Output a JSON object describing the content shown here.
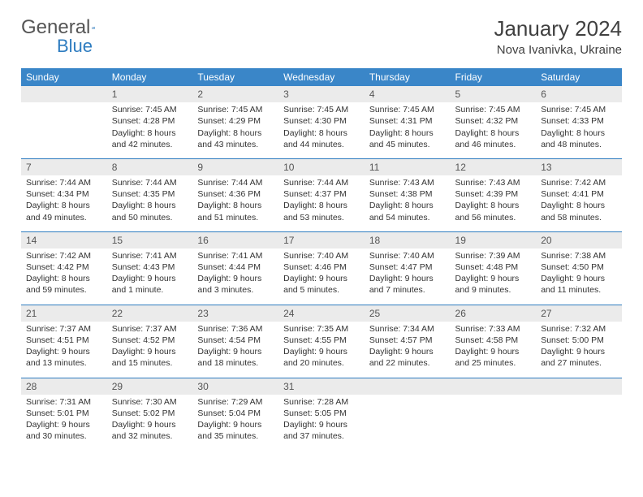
{
  "logo": {
    "word1": "General",
    "word2": "Blue"
  },
  "title": "January 2024",
  "location": "Nova Ivanivka, Ukraine",
  "colors": {
    "header_bg": "#3a86c8",
    "row_divider": "#2e7cc0",
    "daynum_bg": "#ebebeb",
    "text": "#333333",
    "title_text": "#404040"
  },
  "daysOfWeek": [
    "Sunday",
    "Monday",
    "Tuesday",
    "Wednesday",
    "Thursday",
    "Friday",
    "Saturday"
  ],
  "weeks": [
    [
      null,
      {
        "n": "1",
        "sr": "7:45 AM",
        "ss": "4:28 PM",
        "dl": "8 hours and 42 minutes."
      },
      {
        "n": "2",
        "sr": "7:45 AM",
        "ss": "4:29 PM",
        "dl": "8 hours and 43 minutes."
      },
      {
        "n": "3",
        "sr": "7:45 AM",
        "ss": "4:30 PM",
        "dl": "8 hours and 44 minutes."
      },
      {
        "n": "4",
        "sr": "7:45 AM",
        "ss": "4:31 PM",
        "dl": "8 hours and 45 minutes."
      },
      {
        "n": "5",
        "sr": "7:45 AM",
        "ss": "4:32 PM",
        "dl": "8 hours and 46 minutes."
      },
      {
        "n": "6",
        "sr": "7:45 AM",
        "ss": "4:33 PM",
        "dl": "8 hours and 48 minutes."
      }
    ],
    [
      {
        "n": "7",
        "sr": "7:44 AM",
        "ss": "4:34 PM",
        "dl": "8 hours and 49 minutes."
      },
      {
        "n": "8",
        "sr": "7:44 AM",
        "ss": "4:35 PM",
        "dl": "8 hours and 50 minutes."
      },
      {
        "n": "9",
        "sr": "7:44 AM",
        "ss": "4:36 PM",
        "dl": "8 hours and 51 minutes."
      },
      {
        "n": "10",
        "sr": "7:44 AM",
        "ss": "4:37 PM",
        "dl": "8 hours and 53 minutes."
      },
      {
        "n": "11",
        "sr": "7:43 AM",
        "ss": "4:38 PM",
        "dl": "8 hours and 54 minutes."
      },
      {
        "n": "12",
        "sr": "7:43 AM",
        "ss": "4:39 PM",
        "dl": "8 hours and 56 minutes."
      },
      {
        "n": "13",
        "sr": "7:42 AM",
        "ss": "4:41 PM",
        "dl": "8 hours and 58 minutes."
      }
    ],
    [
      {
        "n": "14",
        "sr": "7:42 AM",
        "ss": "4:42 PM",
        "dl": "8 hours and 59 minutes."
      },
      {
        "n": "15",
        "sr": "7:41 AM",
        "ss": "4:43 PM",
        "dl": "9 hours and 1 minute."
      },
      {
        "n": "16",
        "sr": "7:41 AM",
        "ss": "4:44 PM",
        "dl": "9 hours and 3 minutes."
      },
      {
        "n": "17",
        "sr": "7:40 AM",
        "ss": "4:46 PM",
        "dl": "9 hours and 5 minutes."
      },
      {
        "n": "18",
        "sr": "7:40 AM",
        "ss": "4:47 PM",
        "dl": "9 hours and 7 minutes."
      },
      {
        "n": "19",
        "sr": "7:39 AM",
        "ss": "4:48 PM",
        "dl": "9 hours and 9 minutes."
      },
      {
        "n": "20",
        "sr": "7:38 AM",
        "ss": "4:50 PM",
        "dl": "9 hours and 11 minutes."
      }
    ],
    [
      {
        "n": "21",
        "sr": "7:37 AM",
        "ss": "4:51 PM",
        "dl": "9 hours and 13 minutes."
      },
      {
        "n": "22",
        "sr": "7:37 AM",
        "ss": "4:52 PM",
        "dl": "9 hours and 15 minutes."
      },
      {
        "n": "23",
        "sr": "7:36 AM",
        "ss": "4:54 PM",
        "dl": "9 hours and 18 minutes."
      },
      {
        "n": "24",
        "sr": "7:35 AM",
        "ss": "4:55 PM",
        "dl": "9 hours and 20 minutes."
      },
      {
        "n": "25",
        "sr": "7:34 AM",
        "ss": "4:57 PM",
        "dl": "9 hours and 22 minutes."
      },
      {
        "n": "26",
        "sr": "7:33 AM",
        "ss": "4:58 PM",
        "dl": "9 hours and 25 minutes."
      },
      {
        "n": "27",
        "sr": "7:32 AM",
        "ss": "5:00 PM",
        "dl": "9 hours and 27 minutes."
      }
    ],
    [
      {
        "n": "28",
        "sr": "7:31 AM",
        "ss": "5:01 PM",
        "dl": "9 hours and 30 minutes."
      },
      {
        "n": "29",
        "sr": "7:30 AM",
        "ss": "5:02 PM",
        "dl": "9 hours and 32 minutes."
      },
      {
        "n": "30",
        "sr": "7:29 AM",
        "ss": "5:04 PM",
        "dl": "9 hours and 35 minutes."
      },
      {
        "n": "31",
        "sr": "7:28 AM",
        "ss": "5:05 PM",
        "dl": "9 hours and 37 minutes."
      },
      null,
      null,
      null
    ]
  ],
  "labels": {
    "sunrise": "Sunrise: ",
    "sunset": "Sunset: ",
    "daylight": "Daylight: "
  }
}
